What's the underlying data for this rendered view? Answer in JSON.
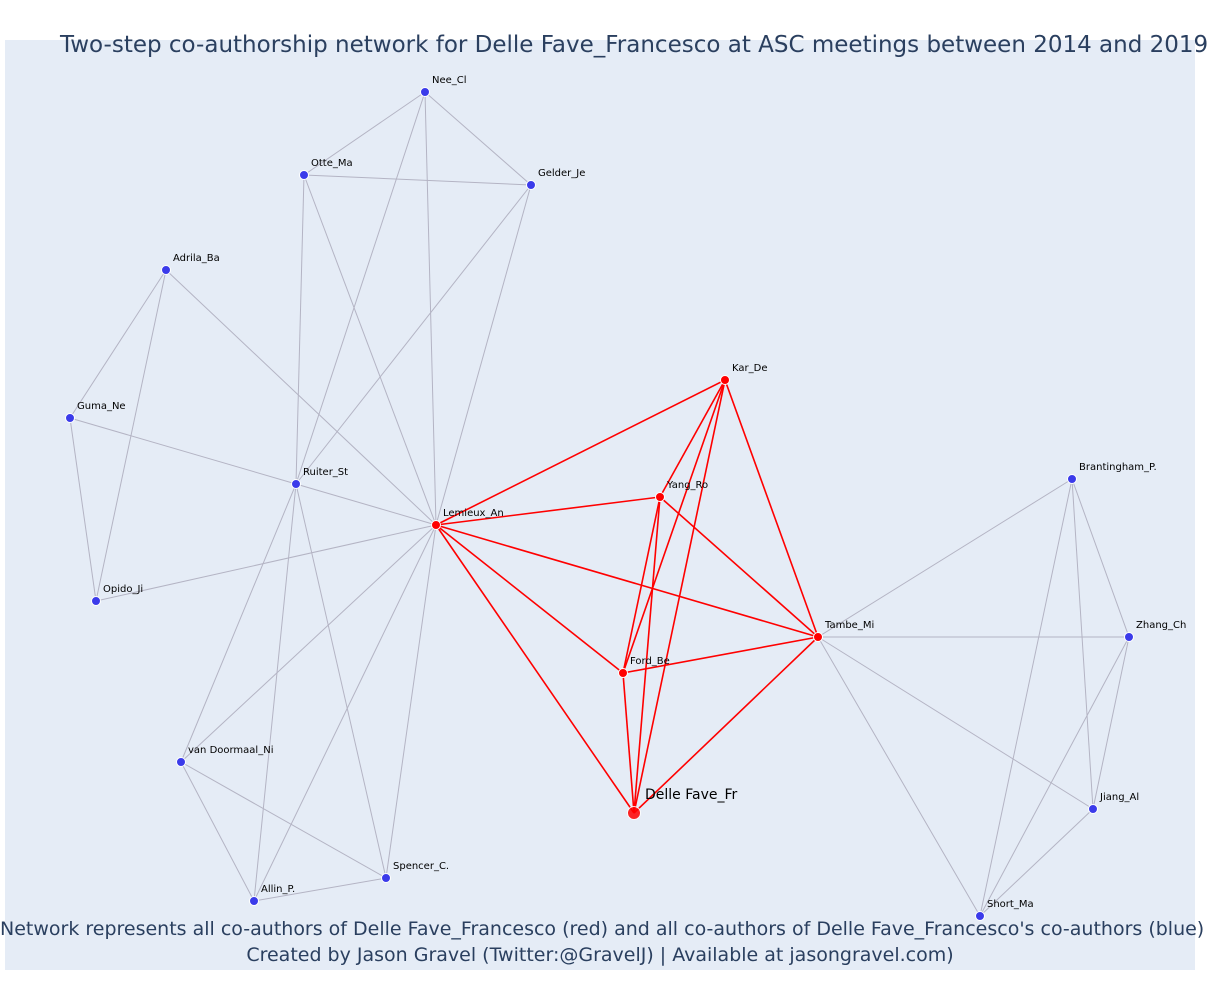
{
  "title": "Two-step co-authorship network for Delle Fave_Francesco at ASC meetings between 2014 and 2019",
  "caption_line1": "Network represents all co-authors of Delle Fave_Francesco (red) and all co-authors of Delle Fave_Francesco's co-authors (blue)",
  "caption_line2": "Created by Jason Gravel (Twitter:@GravelJ) | Available at jasongravel.com)",
  "colors": {
    "background": "#e5ecf6",
    "red": "#ff0000",
    "blue": "#3b3bea",
    "grey_edge": "#b4b4c4",
    "text": "#2a3f5f"
  },
  "nodes": [
    {
      "id": "Delle Fave_Fr",
      "label": "Delle Fave_Fr",
      "group": "ego"
    },
    {
      "id": "Lemieux_An",
      "label": "Lemieux_An",
      "group": "red"
    },
    {
      "id": "Kar_De",
      "label": "Kar_De",
      "group": "red"
    },
    {
      "id": "Yang_Ro",
      "label": "Yang_Ro",
      "group": "red"
    },
    {
      "id": "Tambe_Mi",
      "label": "Tambe_Mi",
      "group": "red"
    },
    {
      "id": "Ford_Be",
      "label": "Ford_Be",
      "group": "red"
    },
    {
      "id": "Nee_Cl",
      "label": "Nee_Cl",
      "group": "blue"
    },
    {
      "id": "Otte_Ma",
      "label": "Otte_Ma",
      "group": "blue"
    },
    {
      "id": "Gelder_Je",
      "label": "Gelder_Je",
      "group": "blue"
    },
    {
      "id": "Adrila_Ba",
      "label": "Adrila_Ba",
      "group": "blue"
    },
    {
      "id": "Guma_Ne",
      "label": "Guma_Ne",
      "group": "blue"
    },
    {
      "id": "Ruiter_St",
      "label": "Ruiter_St",
      "group": "blue"
    },
    {
      "id": "Opido_Ji",
      "label": "Opido_Ji",
      "group": "blue"
    },
    {
      "id": "van Doormaal_Ni",
      "label": "van Doormaal_Ni",
      "group": "blue"
    },
    {
      "id": "Allin_P.",
      "label": "Allin_P.",
      "group": "blue"
    },
    {
      "id": "Spencer_C.",
      "label": "Spencer_C.",
      "group": "blue"
    },
    {
      "id": "Brantingham_P.",
      "label": "Brantingham_P.",
      "group": "blue"
    },
    {
      "id": "Zhang_Ch",
      "label": "Zhang_Ch",
      "group": "blue"
    },
    {
      "id": "Jiang_Al",
      "label": "Jiang_Al",
      "group": "blue"
    },
    {
      "id": "Short_Ma",
      "label": "Short_Ma",
      "group": "blue"
    }
  ],
  "edges": [
    [
      "Lemieux_An",
      "Kar_De",
      "red"
    ],
    [
      "Lemieux_An",
      "Yang_Ro",
      "red"
    ],
    [
      "Lemieux_An",
      "Tambe_Mi",
      "red"
    ],
    [
      "Lemieux_An",
      "Ford_Be",
      "red"
    ],
    [
      "Lemieux_An",
      "Delle Fave_Fr",
      "red"
    ],
    [
      "Kar_De",
      "Yang_Ro",
      "red"
    ],
    [
      "Kar_De",
      "Tambe_Mi",
      "red"
    ],
    [
      "Kar_De",
      "Ford_Be",
      "red"
    ],
    [
      "Kar_De",
      "Delle Fave_Fr",
      "red"
    ],
    [
      "Yang_Ro",
      "Tambe_Mi",
      "red"
    ],
    [
      "Yang_Ro",
      "Ford_Be",
      "red"
    ],
    [
      "Yang_Ro",
      "Delle Fave_Fr",
      "red"
    ],
    [
      "Tambe_Mi",
      "Ford_Be",
      "red"
    ],
    [
      "Tambe_Mi",
      "Delle Fave_Fr",
      "red"
    ],
    [
      "Ford_Be",
      "Delle Fave_Fr",
      "red"
    ],
    [
      "Nee_Cl",
      "Otte_Ma",
      "grey"
    ],
    [
      "Nee_Cl",
      "Gelder_Je",
      "grey"
    ],
    [
      "Nee_Cl",
      "Ruiter_St",
      "grey"
    ],
    [
      "Nee_Cl",
      "Lemieux_An",
      "grey"
    ],
    [
      "Otte_Ma",
      "Gelder_Je",
      "grey"
    ],
    [
      "Otte_Ma",
      "Ruiter_St",
      "grey"
    ],
    [
      "Otte_Ma",
      "Lemieux_An",
      "grey"
    ],
    [
      "Gelder_Je",
      "Ruiter_St",
      "grey"
    ],
    [
      "Gelder_Je",
      "Lemieux_An",
      "grey"
    ],
    [
      "Adrila_Ba",
      "Guma_Ne",
      "grey"
    ],
    [
      "Adrila_Ba",
      "Opido_Ji",
      "grey"
    ],
    [
      "Adrila_Ba",
      "Lemieux_An",
      "grey"
    ],
    [
      "Guma_Ne",
      "Opido_Ji",
      "grey"
    ],
    [
      "Guma_Ne",
      "Ruiter_St",
      "grey"
    ],
    [
      "Ruiter_St",
      "Lemieux_An",
      "grey"
    ],
    [
      "Opido_Ji",
      "Lemieux_An",
      "grey"
    ],
    [
      "Ruiter_St",
      "van Doormaal_Ni",
      "grey"
    ],
    [
      "Ruiter_St",
      "Allin_P.",
      "grey"
    ],
    [
      "Ruiter_St",
      "Spencer_C.",
      "grey"
    ],
    [
      "Lemieux_An",
      "van Doormaal_Ni",
      "grey"
    ],
    [
      "Lemieux_An",
      "Allin_P.",
      "grey"
    ],
    [
      "Lemieux_An",
      "Spencer_C.",
      "grey"
    ],
    [
      "van Doormaal_Ni",
      "Allin_P.",
      "grey"
    ],
    [
      "van Doormaal_Ni",
      "Spencer_C.",
      "grey"
    ],
    [
      "Allin_P.",
      "Spencer_C.",
      "grey"
    ],
    [
      "Tambe_Mi",
      "Brantingham_P.",
      "grey"
    ],
    [
      "Tambe_Mi",
      "Zhang_Ch",
      "grey"
    ],
    [
      "Tambe_Mi",
      "Jiang_Al",
      "grey"
    ],
    [
      "Tambe_Mi",
      "Short_Ma",
      "grey"
    ],
    [
      "Brantingham_P.",
      "Zhang_Ch",
      "grey"
    ],
    [
      "Brantingham_P.",
      "Jiang_Al",
      "grey"
    ],
    [
      "Brantingham_P.",
      "Short_Ma",
      "grey"
    ],
    [
      "Zhang_Ch",
      "Jiang_Al",
      "grey"
    ],
    [
      "Zhang_Ch",
      "Short_Ma",
      "grey"
    ],
    [
      "Jiang_Al",
      "Short_Ma",
      "grey"
    ]
  ]
}
